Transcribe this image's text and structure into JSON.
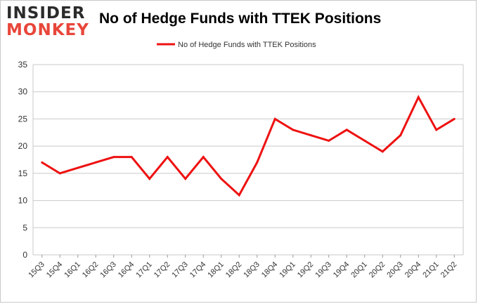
{
  "logo": {
    "line1": "INSIDER",
    "line2": "MONKEY"
  },
  "chart_data": {
    "type": "line",
    "title": "No of Hedge Funds with TTEK Positions",
    "xlabel": "",
    "ylabel": "",
    "categories": [
      "15Q3",
      "15Q4",
      "16Q1",
      "16Q2",
      "16Q3",
      "16Q4",
      "17Q1",
      "17Q2",
      "17Q3",
      "17Q4",
      "18Q1",
      "18Q2",
      "18Q3",
      "18Q4",
      "19Q1",
      "19Q2",
      "19Q3",
      "19Q4",
      "20Q1",
      "20Q2",
      "20Q3",
      "20Q4",
      "21Q1",
      "21Q2"
    ],
    "series": [
      {
        "name": "No of Hedge Funds with TTEK  Positions",
        "values": [
          17,
          15,
          16,
          17,
          18,
          18,
          14,
          18,
          14,
          18,
          14,
          11,
          17,
          25,
          23,
          22,
          21,
          23,
          21,
          19,
          22,
          29,
          23,
          25
        ]
      }
    ],
    "ylim": [
      0,
      35
    ],
    "yticks": [
      0,
      5,
      10,
      15,
      20,
      25,
      30,
      35
    ],
    "grid": true,
    "legend_position": "top",
    "line_color": "#ee1111"
  }
}
